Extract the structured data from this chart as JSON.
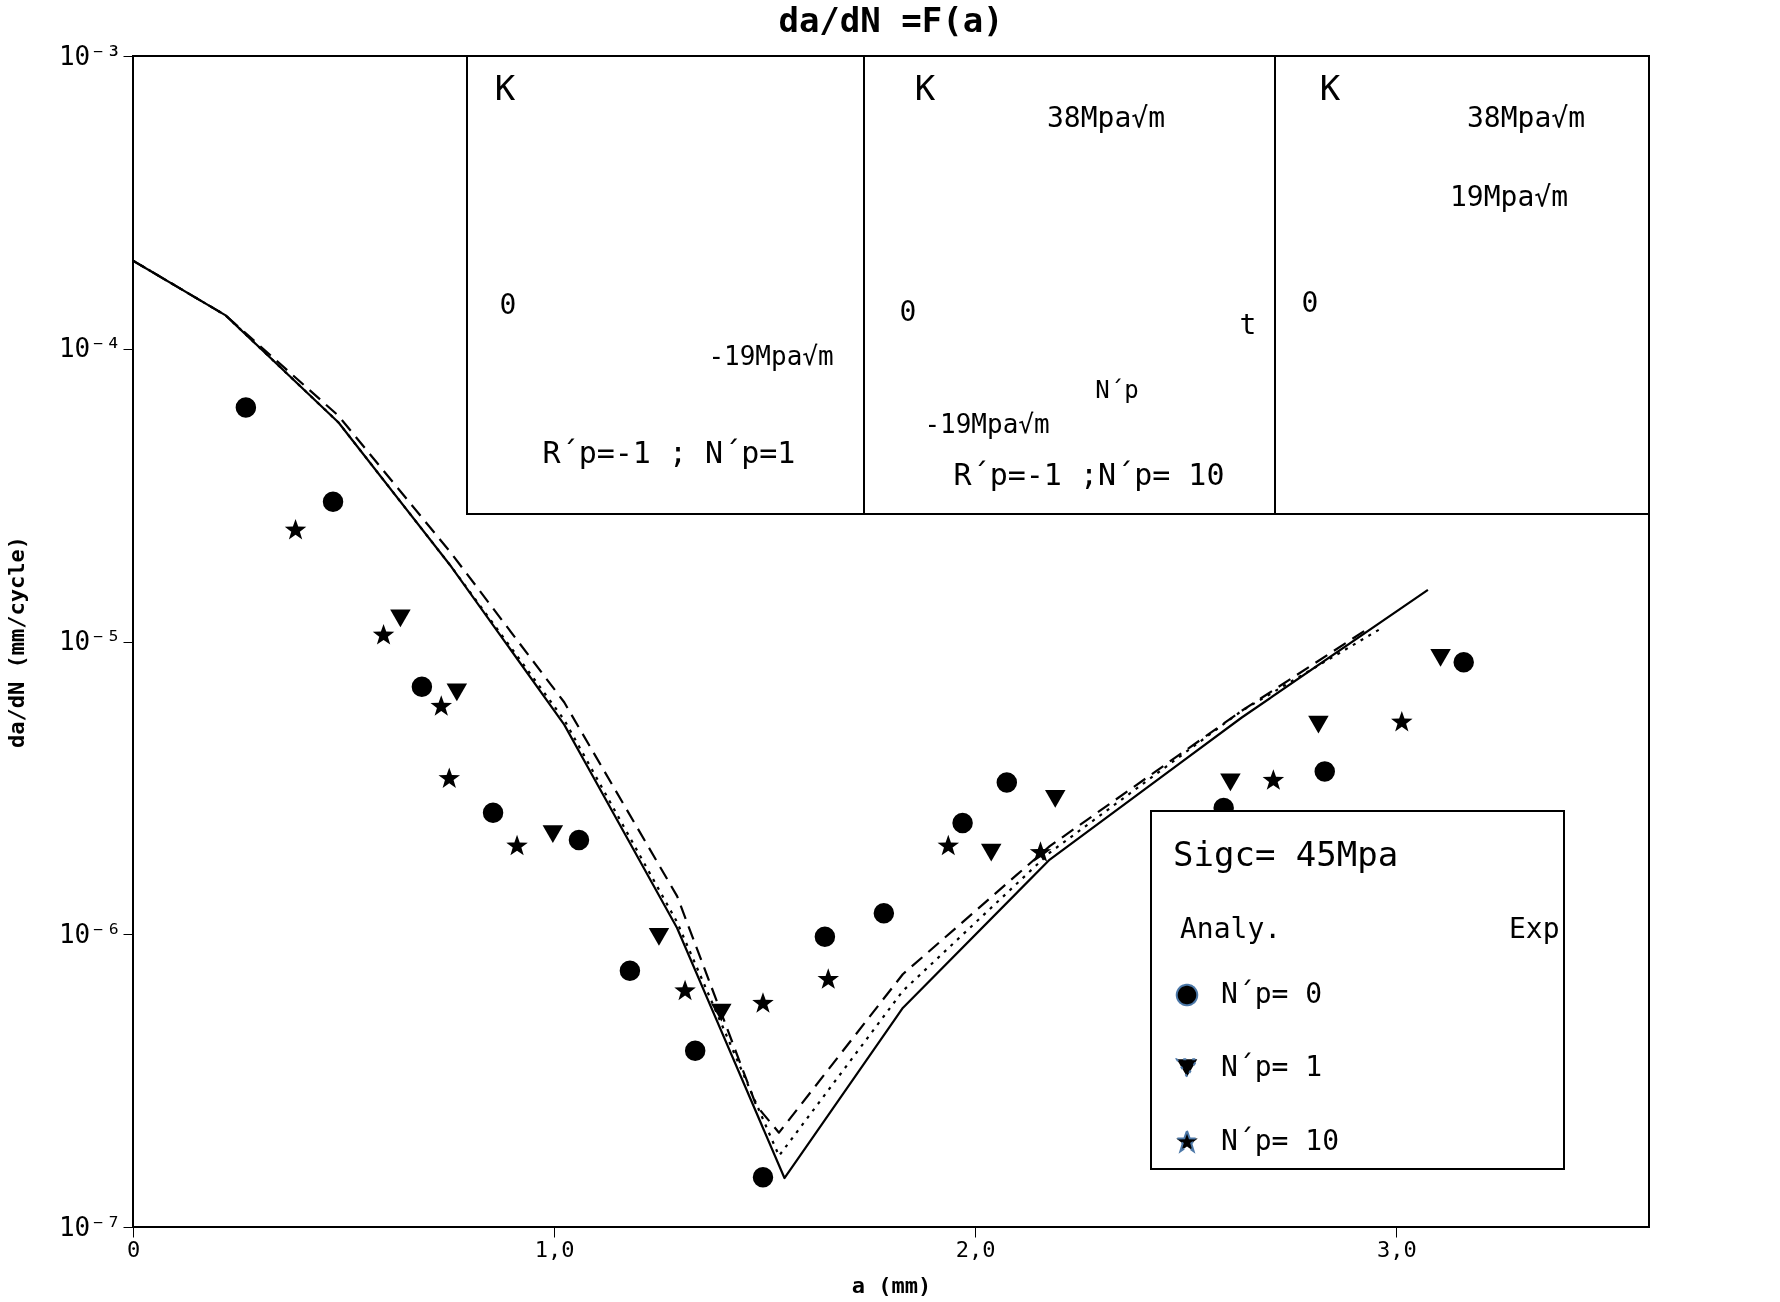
{
  "chart_data": {
    "type": "line",
    "title": "da/dN =F(a)",
    "xlabel": "a   (mm)",
    "ylabel": "da/dN  (mm/cycle)",
    "legend_title": "Sigc= 45Mpa",
    "legend": "bottom right",
    "log": "y",
    "grid": false,
    "xlim": [
      0,
      3.6
    ],
    "ylim": [
      1e-07,
      0.001
    ],
    "xticks": [
      {
        "value": 0,
        "label": "0"
      },
      {
        "value": 1,
        "label": "1,0"
      },
      {
        "value": 2,
        "label": "2,0"
      },
      {
        "value": 3,
        "label": "3,0"
      }
    ],
    "yticks": [
      {
        "value": 1e-07,
        "label": "10⁻⁷"
      },
      {
        "value": 1e-06,
        "label": "10⁻⁶"
      },
      {
        "value": 1e-05,
        "label": "10⁻⁵"
      },
      {
        "value": 0.0001,
        "label": "10⁻⁴"
      },
      {
        "value": 0.001,
        "label": "10⁻³"
      }
    ],
    "annotations": [
      "Analy.",
      "Exp",
      "K",
      "K",
      "K",
      "38Mpa√m",
      "38Mpa√m",
      "19Mpa√m",
      "-19Mpa√m",
      "-19Mpa√m",
      "0",
      "0",
      "0",
      "t",
      "N´p",
      "R´p=-1   ; N´p=1",
      "R´p=-1  ;N´p= 10"
    ],
    "series": [
      {
        "name": "N´p= 0",
        "line_style": "solid",
        "color": "#000000",
        "x": [
          0,
          0.22,
          0.488,
          0.756,
          1.024,
          1.292,
          1.547,
          1.828,
          2.177,
          2.633,
          3.075
        ],
        "values": [
          0.0002,
          0.00013,
          5.6e-05,
          1.8e-05,
          5.2e-06,
          1.05e-06,
          1.47e-07,
          5.6e-07,
          1.8e-06,
          5.5e-06,
          1.5e-05
        ]
      },
      {
        "name": "N´p= 1",
        "line_style": "dotted",
        "color": "#000000",
        "x": [
          0,
          0.22,
          0.488,
          0.756,
          1.024,
          1.292,
          1.534,
          1.828,
          2.177,
          2.633,
          2.96
        ],
        "values": [
          0.0002,
          0.00013,
          5.6e-05,
          1.8e-05,
          5.4e-06,
          1.1e-06,
          1.75e-07,
          6.4e-07,
          1.9e-06,
          5.8e-06,
          1.1e-05
        ]
      },
      {
        "name": "N´p= 10",
        "line_style": "dashed",
        "color": "#000000",
        "x": [
          0,
          0.22,
          0.488,
          0.756,
          1.024,
          1.292,
          1.48,
          1.534,
          1.828,
          2.177,
          2.633,
          2.93
        ],
        "values": [
          0.0002,
          0.00013,
          5.9e-05,
          2e-05,
          6.2e-06,
          1.35e-06,
          2.6e-07,
          2.1e-07,
          7.3e-07,
          2e-06,
          5.8e-06,
          1.1e-05
        ]
      },
      {
        "type": "scatter",
        "marker": "circle",
        "color": "#000000",
        "x": [
          0.268,
          0.475,
          0.686,
          0.855,
          1.059,
          1.18,
          1.335,
          1.496,
          1.643,
          1.783,
          1.97,
          2.075,
          2.59,
          2.83,
          3.16
        ],
        "values": [
          6.3e-05,
          3e-05,
          7e-06,
          2.6e-06,
          2.1e-06,
          7.5e-07,
          4e-07,
          1.48e-07,
          9.8e-07,
          1.18e-06,
          2.4e-06,
          3.3e-06,
          2.7e-06,
          3.6e-06,
          8.5e-06
        ]
      },
      {
        "type": "scatter",
        "marker": "triangle",
        "color": "#000000",
        "x": [
          0.635,
          0.769,
          0.997,
          1.249,
          1.397,
          2.038,
          2.19,
          2.606,
          2.815,
          3.105
        ],
        "values": [
          1.2e-05,
          6.7e-06,
          2.2e-06,
          9.8e-07,
          5.4e-07,
          1.9e-06,
          2.9e-06,
          3.3e-06,
          5.2e-06,
          8.8e-06
        ]
      },
      {
        "type": "scatter",
        "marker": "star",
        "color": "#000000",
        "x": [
          0.386,
          0.595,
          0.732,
          0.751,
          0.912,
          1.311,
          1.496,
          1.651,
          1.936,
          2.155,
          2.708,
          3.013
        ],
        "values": [
          2.4e-05,
          1.05e-05,
          6e-06,
          3.4e-06,
          2e-06,
          6.4e-07,
          5.8e-07,
          7e-07,
          2e-06,
          1.9e-06,
          3.35e-06,
          5.3e-06
        ]
      }
    ]
  }
}
